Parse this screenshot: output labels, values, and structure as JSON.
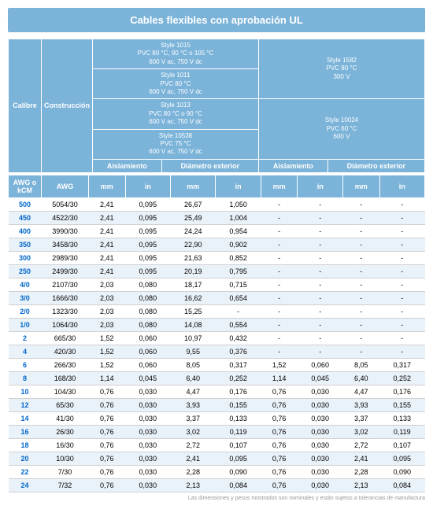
{
  "title": "Cables flexibles con aprobación UL",
  "header": {
    "calibre": "Calibre",
    "construccion": "Construcción",
    "style1015": "Style 1015\nPVC 80 °C, 90 °C o 105 °C\n600 V ac, 750 V dc",
    "style1011": "Style 1011\nPVC 80 °C\n600 V ac, 750 V dc",
    "style1013": "Style 1013\nPVC 80 °C o 90 °C\n600 V ac, 750 V dc",
    "style10538": "Style 10538\nPVC 75 °C\n600 V ac, 750 V dc",
    "style1582": "Style 1582\nPVC 80 °C\n300 V",
    "style10024": "Style 10024\nPVC 60 °C\n600 V",
    "aislamiento": "Aislamiento",
    "diametro": "Diámetro exterior",
    "awg_kcm": "AWG o kCM",
    "awg": "AWG",
    "mm": "mm",
    "in": "in"
  },
  "rows": [
    {
      "awg": "500",
      "const": "5054/30",
      "a_mm": "2,41",
      "a_in": "0,095",
      "d_mm": "26,67",
      "d_in": "1,050",
      "a2_mm": "-",
      "a2_in": "-",
      "d2_mm": "-",
      "d2_in": "-"
    },
    {
      "awg": "450",
      "const": "4522/30",
      "a_mm": "2,41",
      "a_in": "0,095",
      "d_mm": "25,49",
      "d_in": "1,004",
      "a2_mm": "-",
      "a2_in": "-",
      "d2_mm": "-",
      "d2_in": "-"
    },
    {
      "awg": "400",
      "const": "3990/30",
      "a_mm": "2,41",
      "a_in": "0,095",
      "d_mm": "24,24",
      "d_in": "0,954",
      "a2_mm": "-",
      "a2_in": "-",
      "d2_mm": "-",
      "d2_in": "-"
    },
    {
      "awg": "350",
      "const": "3458/30",
      "a_mm": "2,41",
      "a_in": "0,095",
      "d_mm": "22,90",
      "d_in": "0,902",
      "a2_mm": "-",
      "a2_in": "-",
      "d2_mm": "-",
      "d2_in": "-"
    },
    {
      "awg": "300",
      "const": "2989/30",
      "a_mm": "2,41",
      "a_in": "0,095",
      "d_mm": "21,63",
      "d_in": "0,852",
      "a2_mm": "-",
      "a2_in": "-",
      "d2_mm": "-",
      "d2_in": "-"
    },
    {
      "awg": "250",
      "const": "2499/30",
      "a_mm": "2,41",
      "a_in": "0,095",
      "d_mm": "20,19",
      "d_in": "0,795",
      "a2_mm": "-",
      "a2_in": "-",
      "d2_mm": "-",
      "d2_in": "-"
    },
    {
      "awg": "4/0",
      "const": "2107/30",
      "a_mm": "2,03",
      "a_in": "0,080",
      "d_mm": "18,17",
      "d_in": "0,715",
      "a2_mm": "-",
      "a2_in": "-",
      "d2_mm": "-",
      "d2_in": "-"
    },
    {
      "awg": "3/0",
      "const": "1666/30",
      "a_mm": "2,03",
      "a_in": "0,080",
      "d_mm": "16,62",
      "d_in": "0,654",
      "a2_mm": "-",
      "a2_in": "-",
      "d2_mm": "-",
      "d2_in": "-"
    },
    {
      "awg": "2/0",
      "const": "1323/30",
      "a_mm": "2,03",
      "a_in": "0,080",
      "d_mm": "15,25",
      "d_in": "-",
      "a2_mm": "-",
      "a2_in": "-",
      "d2_mm": "-",
      "d2_in": "-"
    },
    {
      "awg": "1/0",
      "const": "1064/30",
      "a_mm": "2,03",
      "a_in": "0,080",
      "d_mm": "14,08",
      "d_in": "0,554",
      "a2_mm": "-",
      "a2_in": "-",
      "d2_mm": "-",
      "d2_in": "-"
    },
    {
      "awg": "2",
      "const": "665/30",
      "a_mm": "1,52",
      "a_in": "0,060",
      "d_mm": "10,97",
      "d_in": "0,432",
      "a2_mm": "-",
      "a2_in": "-",
      "d2_mm": "-",
      "d2_in": "-"
    },
    {
      "awg": "4",
      "const": "420/30",
      "a_mm": "1,52",
      "a_in": "0,060",
      "d_mm": "9,55",
      "d_in": "0,376",
      "a2_mm": "-",
      "a2_in": "-",
      "d2_mm": "-",
      "d2_in": "-"
    },
    {
      "awg": "6",
      "const": "266/30",
      "a_mm": "1,52",
      "a_in": "0,060",
      "d_mm": "8,05",
      "d_in": "0,317",
      "a2_mm": "1,52",
      "a2_in": "0,060",
      "d2_mm": "8,05",
      "d2_in": "0,317"
    },
    {
      "awg": "8",
      "const": "168/30",
      "a_mm": "1,14",
      "a_in": "0,045",
      "d_mm": "6,40",
      "d_in": "0,252",
      "a2_mm": "1,14",
      "a2_in": "0,045",
      "d2_mm": "6,40",
      "d2_in": "0,252"
    },
    {
      "awg": "10",
      "const": "104/30",
      "a_mm": "0,76",
      "a_in": "0,030",
      "d_mm": "4,47",
      "d_in": "0,176",
      "a2_mm": "0,76",
      "a2_in": "0,030",
      "d2_mm": "4,47",
      "d2_in": "0,176"
    },
    {
      "awg": "12",
      "const": "65/30",
      "a_mm": "0,76",
      "a_in": "0,030",
      "d_mm": "3,93",
      "d_in": "0,155",
      "a2_mm": "0,76",
      "a2_in": "0,030",
      "d2_mm": "3,93",
      "d2_in": "0,155"
    },
    {
      "awg": "14",
      "const": "41/30",
      "a_mm": "0,76",
      "a_in": "0,030",
      "d_mm": "3,37",
      "d_in": "0,133",
      "a2_mm": "0,76",
      "a2_in": "0,030",
      "d2_mm": "3,37",
      "d2_in": "0,133"
    },
    {
      "awg": "16",
      "const": "26/30",
      "a_mm": "0,76",
      "a_in": "0,030",
      "d_mm": "3,02",
      "d_in": "0,119",
      "a2_mm": "0,76",
      "a2_in": "0,030",
      "d2_mm": "3,02",
      "d2_in": "0,119"
    },
    {
      "awg": "18",
      "const": "16/30",
      "a_mm": "0,76",
      "a_in": "0,030",
      "d_mm": "2,72",
      "d_in": "0,107",
      "a2_mm": "0,76",
      "a2_in": "0,030",
      "d2_mm": "2,72",
      "d2_in": "0,107"
    },
    {
      "awg": "20",
      "const": "10/30",
      "a_mm": "0,76",
      "a_in": "0,030",
      "d_mm": "2,41",
      "d_in": "0,095",
      "a2_mm": "0,76",
      "a2_in": "0,030",
      "d2_mm": "2,41",
      "d2_in": "0,095"
    },
    {
      "awg": "22",
      "const": "7/30",
      "a_mm": "0,76",
      "a_in": "0,030",
      "d_mm": "2,28",
      "d_in": "0,090",
      "a2_mm": "0,76",
      "a2_in": "0,030",
      "d2_mm": "2,28",
      "d2_in": "0,090"
    },
    {
      "awg": "24",
      "const": "7/32",
      "a_mm": "0,76",
      "a_in": "0,030",
      "d_mm": "2,13",
      "d_in": "0,084",
      "a2_mm": "0,76",
      "a2_in": "0,030",
      "d2_mm": "2,13",
      "d2_in": "0,084"
    }
  ],
  "footer": "Las dimensiones y pesos mostrados son nominales y están sujetos a tolerancias de manufactura"
}
